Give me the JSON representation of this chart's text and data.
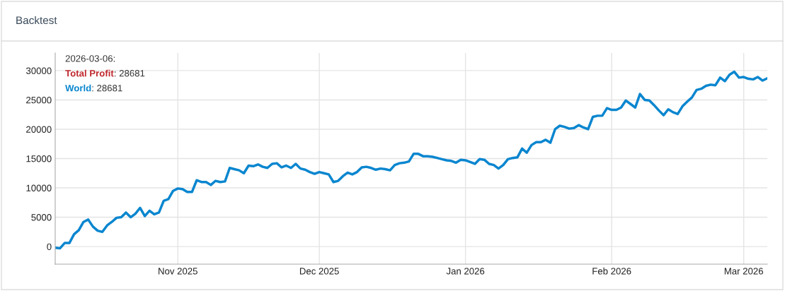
{
  "chart_data": {
    "type": "line",
    "title": "Backtest",
    "annotations": [
      "2026-03-06:",
      "Total Profit: 28681",
      "World: 28681"
    ],
    "x": [
      "2025-10-06",
      "2025-10-07",
      "2025-10-08",
      "2025-10-09",
      "2025-10-10",
      "2025-10-11",
      "2025-10-12",
      "2025-10-13",
      "2025-10-14",
      "2025-10-15",
      "2025-10-16",
      "2025-10-17",
      "2025-10-18",
      "2025-10-19",
      "2025-10-20",
      "2025-10-21",
      "2025-10-22",
      "2025-10-23",
      "2025-10-24",
      "2025-10-25",
      "2025-10-26",
      "2025-10-27",
      "2025-10-28",
      "2025-10-29",
      "2025-10-30",
      "2025-10-31",
      "2025-11-01",
      "2025-11-02",
      "2025-11-03",
      "2025-11-04",
      "2025-11-05",
      "2025-11-06",
      "2025-11-07",
      "2025-11-08",
      "2025-11-09",
      "2025-11-10",
      "2025-11-11",
      "2025-11-12",
      "2025-11-13",
      "2025-11-14",
      "2025-11-15",
      "2025-11-16",
      "2025-11-17",
      "2025-11-18",
      "2025-11-19",
      "2025-11-20",
      "2025-11-21",
      "2025-11-22",
      "2025-11-23",
      "2025-11-24",
      "2025-11-25",
      "2025-11-26",
      "2025-11-27",
      "2025-11-28",
      "2025-11-29",
      "2025-11-30",
      "2025-12-01",
      "2025-12-02",
      "2025-12-03",
      "2025-12-04",
      "2025-12-05",
      "2025-12-06",
      "2025-12-07",
      "2025-12-08",
      "2025-12-09",
      "2025-12-10",
      "2025-12-11",
      "2025-12-12",
      "2025-12-13",
      "2025-12-14",
      "2025-12-15",
      "2025-12-16",
      "2025-12-17",
      "2025-12-18",
      "2025-12-19",
      "2025-12-20",
      "2025-12-21",
      "2025-12-22",
      "2025-12-23",
      "2025-12-24",
      "2025-12-25",
      "2025-12-26",
      "2025-12-27",
      "2025-12-28",
      "2025-12-29",
      "2025-12-30",
      "2025-12-31",
      "2026-01-01",
      "2026-01-02",
      "2026-01-03",
      "2026-01-04",
      "2026-01-05",
      "2026-01-06",
      "2026-01-07",
      "2026-01-08",
      "2026-01-09",
      "2026-01-10",
      "2026-01-11",
      "2026-01-12",
      "2026-01-13",
      "2026-01-14",
      "2026-01-15",
      "2026-01-16",
      "2026-01-17",
      "2026-01-18",
      "2026-01-19",
      "2026-01-20",
      "2026-01-21",
      "2026-01-22",
      "2026-01-23",
      "2026-01-24",
      "2026-01-25",
      "2026-01-26",
      "2026-01-27",
      "2026-01-28",
      "2026-01-29",
      "2026-01-30",
      "2026-01-31",
      "2026-02-01",
      "2026-02-02",
      "2026-02-03",
      "2026-02-04",
      "2026-02-05",
      "2026-02-06",
      "2026-02-07",
      "2026-02-08",
      "2026-02-09",
      "2026-02-10",
      "2026-02-11",
      "2026-02-12",
      "2026-02-13",
      "2026-02-14",
      "2026-02-15",
      "2026-02-16",
      "2026-02-17",
      "2026-02-18",
      "2026-02-19",
      "2026-02-20",
      "2026-02-21",
      "2026-02-22",
      "2026-02-23",
      "2026-02-24",
      "2026-02-25",
      "2026-02-26",
      "2026-02-27",
      "2026-02-28",
      "2026-03-01",
      "2026-03-02",
      "2026-03-03",
      "2026-03-04",
      "2026-03-05",
      "2026-03-06"
    ],
    "xlim": [
      "2025-10-06",
      "2026-03-06"
    ],
    "xticks": [
      {
        "value": "2025-11-01",
        "label": "Nov 2025"
      },
      {
        "value": "2025-12-01",
        "label": "Dec 2025"
      },
      {
        "value": "2026-01-01",
        "label": "Jan 2026"
      },
      {
        "value": "2026-02-01",
        "label": "Feb 2026"
      },
      {
        "value": "2026-03-01",
        "label": "Mar 2026"
      }
    ],
    "ylim": [
      -3000,
      33000
    ],
    "yticks": [
      0,
      5000,
      10000,
      15000,
      20000,
      25000,
      30000
    ],
    "grid": true,
    "line_style": "solid",
    "series": [
      {
        "color": "#0a86cf",
        "values": [
          -200,
          -300,
          600,
          600,
          2100,
          2800,
          4200,
          4600,
          3400,
          2700,
          2500,
          3600,
          4200,
          4900,
          5000,
          5800,
          5000,
          5600,
          6600,
          5200,
          6100,
          5500,
          5800,
          7800,
          8100,
          9500,
          9900,
          9800,
          9300,
          9300,
          11300,
          11000,
          11000,
          10500,
          11200,
          11000,
          11100,
          13400,
          13200,
          13000,
          12500,
          13800,
          13700,
          14000,
          13600,
          13400,
          14100,
          14200,
          13500,
          13800,
          13400,
          14100,
          13300,
          13100,
          12700,
          12400,
          12700,
          12500,
          12300,
          11000,
          11200,
          12000,
          12600,
          12300,
          12700,
          13500,
          13600,
          13400,
          13100,
          13300,
          13200,
          13000,
          13900,
          14200,
          14300,
          14500,
          15800,
          15800,
          15400,
          15400,
          15300,
          15100,
          14900,
          14700,
          14600,
          14300,
          14800,
          14700,
          14400,
          14100,
          14900,
          14800,
          14100,
          13900,
          13300,
          13900,
          14900,
          15100,
          15200,
          16700,
          16000,
          17300,
          17800,
          17800,
          18200,
          17700,
          20000,
          20600,
          20400,
          20100,
          20200,
          20700,
          20300,
          20000,
          22100,
          22300,
          22300,
          23600,
          23300,
          23300,
          23700,
          24900,
          24300,
          23700,
          26000,
          25000,
          24900,
          24100,
          23200,
          22400,
          23400,
          22900,
          22600,
          23900,
          24700,
          25400,
          26700,
          26900,
          27400,
          27600,
          27500,
          28800,
          28200,
          29300,
          29800,
          28800,
          28900,
          28600,
          28500,
          28900,
          28300,
          28681
        ]
      }
    ]
  }
}
